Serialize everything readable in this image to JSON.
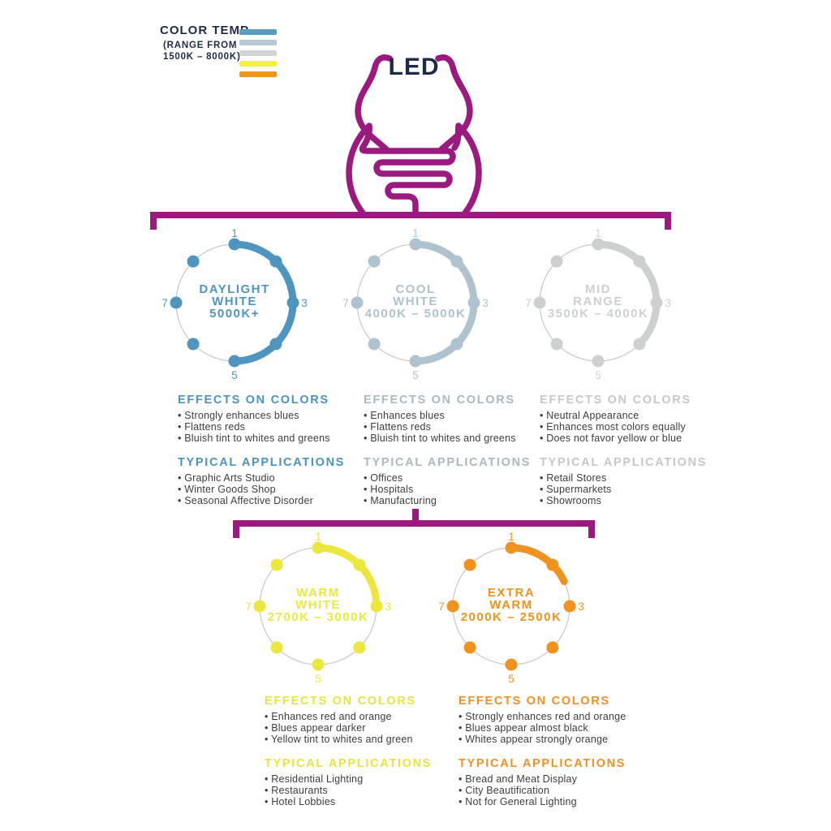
{
  "colors": {
    "outline_magenta": "#9a1a80",
    "navy": "#1e2b47",
    "body_text": "#3d3d3d",
    "ring_gray": "#c6c8c9"
  },
  "legend": {
    "title": "COLOR TEMP.",
    "subtitle_line1": "(RANGE FROM",
    "subtitle_line2": "1500K – 8000K)",
    "swatches": [
      {
        "name": "daylight-white-swatch",
        "color": "#5b9dc1"
      },
      {
        "name": "cool-white-swatch",
        "color": "#b7c9d3"
      },
      {
        "name": "mid-range-swatch",
        "color": "#d2d5d6"
      },
      {
        "name": "warm-white-swatch",
        "color": "#f3f03f"
      },
      {
        "name": "extra-warm-swatch",
        "color": "#f0931f"
      }
    ]
  },
  "bulb": {
    "label": "LED"
  },
  "dials": [
    {
      "name": "daylight-white",
      "color": "#4e96bf",
      "label_lines": [
        "DAYLIGHT",
        "WHITE",
        "5000K+"
      ],
      "scale_labels": [
        "1",
        "3",
        "5",
        "7"
      ],
      "dot_count": 8,
      "arc_start_deg": 0,
      "arc_end_deg": 180
    },
    {
      "name": "cool-white",
      "color": "#aec3cf",
      "label_lines": [
        "COOL",
        "WHITE",
        "4000K – 5000K"
      ],
      "scale_labels": [
        "1",
        "3",
        "5",
        "7"
      ],
      "dot_count": 8,
      "arc_start_deg": 0,
      "arc_end_deg": 180
    },
    {
      "name": "mid-range",
      "color": "#cdd0d1",
      "label_lines": [
        "MID",
        "RANGE",
        "3500K – 4000K"
      ],
      "scale_labels": [
        "1",
        "3",
        "5",
        "7"
      ],
      "dot_count": 8,
      "arc_start_deg": 0,
      "arc_end_deg": 135
    },
    {
      "name": "warm-white",
      "color": "#ece73f",
      "label_lines": [
        "WARM",
        "WHITE",
        "2700K – 3000K"
      ],
      "scale_labels": [
        "1",
        "3",
        "5",
        "7"
      ],
      "dot_count": 8,
      "arc_start_deg": 0,
      "arc_end_deg": 90
    },
    {
      "name": "extra-warm",
      "color": "#f2921e",
      "label_lines": [
        "EXTRA",
        "WARM",
        "2000K – 2500K"
      ],
      "scale_labels": [
        "1",
        "3",
        "5",
        "7"
      ],
      "dot_count": 8,
      "arc_start_deg": 0,
      "arc_end_deg": 65
    }
  ],
  "sections": [
    {
      "name": "daylight-white",
      "color": "#4a93bc",
      "effects_heading": "EFFECTS ON COLORS",
      "effects": [
        "Strongly enhances blues",
        "Flattens reds",
        "Bluish tint to whites and greens"
      ],
      "applications_heading": "TYPICAL APPLICATIONS",
      "applications": [
        "Graphic Arts Studio",
        "Winter Goods Shop",
        "Seasonal Affective Disorder"
      ]
    },
    {
      "name": "cool-white",
      "color": "#a7bac4",
      "effects_heading": "EFFECTS ON COLORS",
      "effects": [
        "Enhances blues",
        "Flattens reds",
        "Bluish tint to whites and greens"
      ],
      "applications_heading": "TYPICAL APPLICATIONS",
      "applications": [
        "Offices",
        "Hospitals",
        "Manufacturing"
      ]
    },
    {
      "name": "mid-range",
      "color": "#c5c8c9",
      "effects_heading": "EFFECTS ON COLORS",
      "effects": [
        "Neutral Appearance",
        "Enhances most colors equally",
        "Does not favor yellow or blue"
      ],
      "applications_heading": "TYPICAL APPLICATIONS",
      "applications": [
        "Retail Stores",
        "Supermarkets",
        "Showrooms"
      ]
    },
    {
      "name": "warm-white",
      "color": "#e8e43e",
      "effects_heading": "EFFECTS ON COLORS",
      "effects": [
        "Enhances red and orange",
        "Blues appear darker",
        "Yellow tint to whites and green"
      ],
      "applications_heading": "TYPICAL APPLICATIONS",
      "applications": [
        "Residential Lighting",
        "Restaurants",
        "Hotel Lobbies"
      ]
    },
    {
      "name": "extra-warm",
      "color": "#ef9122",
      "effects_heading": "EFFECTS ON COLORS",
      "effects": [
        "Strongly enhances red and orange",
        "Blues appear almost black",
        "Whites appear strongly orange"
      ],
      "applications_heading": "TYPICAL APPLICATIONS",
      "applications": [
        "Bread and Meat Display",
        "City Beautification",
        "Not for General Lighting"
      ]
    }
  ]
}
